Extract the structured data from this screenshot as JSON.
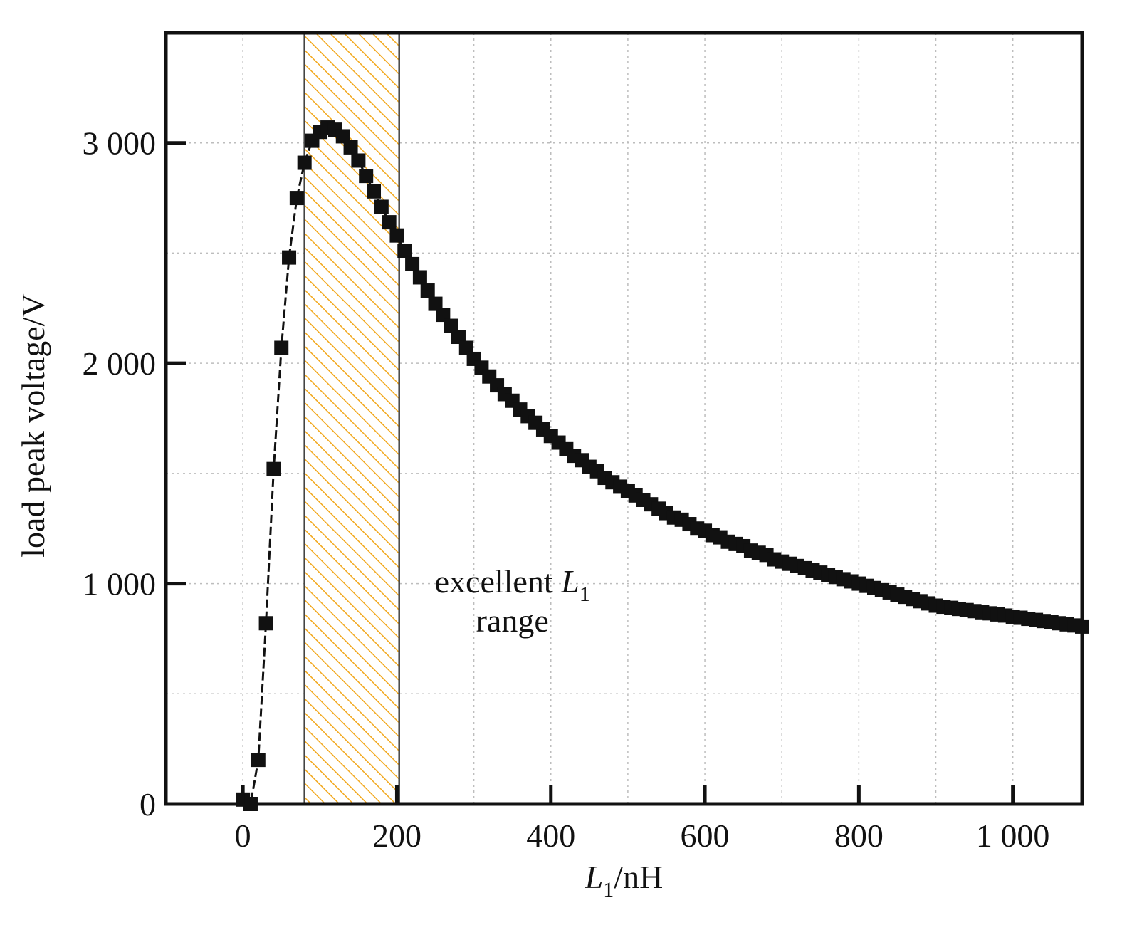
{
  "chart_data": {
    "type": "scatter",
    "title": "",
    "xlabel": {
      "main": "L",
      "sub": "1",
      "unit": "/nH"
    },
    "ylabel": "load peak voltage/V",
    "xlim": [
      -100,
      1090
    ],
    "ylim": [
      0,
      3500
    ],
    "x_ticks": [
      0,
      200,
      400,
      600,
      800,
      1000
    ],
    "x_tick_labels": [
      "0",
      "200",
      "400",
      "600",
      "800",
      "1 000"
    ],
    "y_ticks": [
      0,
      1000,
      2000,
      3000
    ],
    "y_tick_labels": [
      "0",
      "1 000",
      "2 000",
      "3 000"
    ],
    "x_grid": [
      0,
      100,
      200,
      300,
      400,
      500,
      600,
      700,
      800,
      900,
      1000
    ],
    "y_grid": [
      500,
      1000,
      1500,
      2000,
      2500,
      3000
    ],
    "grid": true,
    "highlight_band": {
      "x_from": 80,
      "x_to": 203,
      "fill": "#F2A81D",
      "hatch": "diagonal"
    },
    "annotation": {
      "line1": "excellent ",
      "italic": "L",
      "sub": "1",
      "line2": "range",
      "at_x": 350,
      "at_y": 960
    },
    "colors": {
      "marker": "#111111",
      "grid": "#bdbdbd",
      "axis": "#111111",
      "band_hatch": "#F2A81D"
    },
    "series": [
      {
        "marker": "square",
        "line": "dashed",
        "x": [
          0,
          10,
          20,
          30,
          40,
          50,
          60,
          70,
          80,
          90,
          100,
          110,
          120,
          130,
          140,
          150,
          160,
          170,
          180,
          190,
          200,
          210,
          220,
          230,
          240,
          250,
          260,
          270,
          280,
          290,
          300,
          310,
          320,
          330,
          340,
          350,
          360,
          370,
          380,
          390,
          400,
          410,
          420,
          430,
          440,
          450,
          460,
          470,
          480,
          490,
          500,
          510,
          520,
          530,
          540,
          550,
          560,
          570,
          580,
          590,
          600,
          610,
          620,
          630,
          640,
          650,
          660,
          670,
          680,
          690,
          700,
          710,
          720,
          730,
          740,
          750,
          760,
          770,
          780,
          790,
          800,
          810,
          820,
          830,
          840,
          850,
          860,
          870,
          880,
          890,
          900,
          910,
          920,
          930,
          940,
          950,
          960,
          970,
          980,
          990,
          1000,
          1010,
          1020,
          1030,
          1040,
          1050,
          1060,
          1070,
          1080,
          1090
        ],
        "y": [
          20,
          0,
          200,
          820,
          1520,
          2070,
          2480,
          2750,
          2910,
          3010,
          3050,
          3070,
          3060,
          3030,
          2980,
          2920,
          2850,
          2780,
          2710,
          2640,
          2580,
          2510,
          2450,
          2390,
          2330,
          2270,
          2220,
          2170,
          2120,
          2070,
          2020,
          1980,
          1940,
          1900,
          1860,
          1830,
          1790,
          1760,
          1730,
          1700,
          1670,
          1640,
          1610,
          1580,
          1560,
          1530,
          1510,
          1480,
          1460,
          1440,
          1420,
          1400,
          1380,
          1360,
          1340,
          1320,
          1300,
          1290,
          1270,
          1250,
          1240,
          1220,
          1210,
          1190,
          1180,
          1170,
          1150,
          1140,
          1130,
          1110,
          1100,
          1090,
          1080,
          1070,
          1060,
          1050,
          1040,
          1030,
          1020,
          1010,
          1000,
          990,
          980,
          970,
          960,
          950,
          940,
          930,
          920,
          910,
          900,
          895,
          890,
          885,
          880,
          875,
          870,
          865,
          860,
          855,
          850,
          845,
          840,
          835,
          830,
          825,
          820,
          815,
          810,
          805
        ]
      }
    ]
  }
}
